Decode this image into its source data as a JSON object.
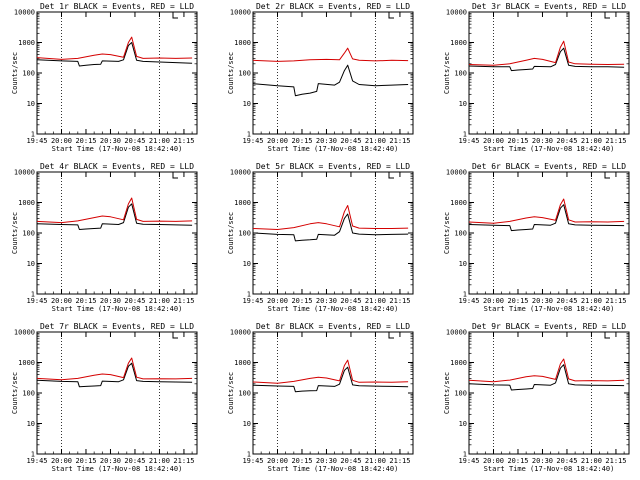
{
  "chart_data": [
    {
      "type": "line",
      "title": "Det 1r BLACK = Events, RED = LLD",
      "xlabel": "Start Time (17-Nov-08 18:42:40)",
      "ylabel": "Counts/sec",
      "yscale": "log",
      "ylim": [
        1,
        10000
      ],
      "x_ticks": [
        "19:45",
        "20:00",
        "20:15",
        "20:30",
        "20:45",
        "21:00",
        "21:15"
      ],
      "y_ticks": [
        "1",
        "10",
        "100",
        "1000",
        "10000"
      ],
      "dotted_vlines": [
        "20:00",
        "21:00"
      ],
      "series": [
        {
          "color": "#000000",
          "x": [
            "19:45",
            "20:00",
            "20:10",
            "20:11",
            "20:15",
            "20:20",
            "20:24",
            "20:25",
            "20:35",
            "20:38",
            "20:41",
            "20:43",
            "20:46",
            "20:50",
            "21:00",
            "21:10",
            "21:20"
          ],
          "y": [
            270,
            250,
            240,
            170,
            180,
            190,
            195,
            250,
            240,
            270,
            800,
            1000,
            260,
            240,
            230,
            220,
            210
          ]
        },
        {
          "color": "#d40000",
          "x": [
            "19:45",
            "20:00",
            "20:10",
            "20:20",
            "20:25",
            "20:30",
            "20:38",
            "20:41",
            "20:43",
            "20:46",
            "20:50",
            "21:00",
            "21:10",
            "21:20"
          ],
          "y": [
            320,
            280,
            300,
            380,
            420,
            400,
            330,
            1000,
            1500,
            350,
            300,
            310,
            300,
            310
          ]
        }
      ]
    },
    {
      "type": "line",
      "title": "Det 2r BLACK = Events, RED = LLD",
      "xlabel": "Start Time (17-Nov-08 18:42:40)",
      "ylabel": "Counts/sec",
      "yscale": "log",
      "ylim": [
        1,
        10000
      ],
      "x_ticks": [
        "19:45",
        "20:00",
        "20:15",
        "20:30",
        "20:45",
        "21:00",
        "21:15"
      ],
      "y_ticks": [
        "1",
        "10",
        "100",
        "1000",
        "10000"
      ],
      "dotted_vlines": [
        "20:00",
        "21:00"
      ],
      "series": [
        {
          "color": "#000000",
          "x": [
            "19:45",
            "20:00",
            "20:10",
            "20:11",
            "20:15",
            "20:20",
            "20:24",
            "20:25",
            "20:35",
            "20:38",
            "20:41",
            "20:43",
            "20:46",
            "20:50",
            "21:00",
            "21:10",
            "21:20"
          ],
          "y": [
            45,
            38,
            35,
            18,
            20,
            22,
            25,
            45,
            40,
            50,
            120,
            180,
            55,
            42,
            38,
            40,
            42
          ]
        },
        {
          "color": "#d40000",
          "x": [
            "19:45",
            "20:00",
            "20:10",
            "20:20",
            "20:30",
            "20:38",
            "20:41",
            "20:43",
            "20:46",
            "20:50",
            "21:00",
            "21:10",
            "21:20"
          ],
          "y": [
            260,
            240,
            250,
            270,
            280,
            270,
            450,
            650,
            290,
            260,
            250,
            260,
            255
          ]
        }
      ]
    },
    {
      "type": "line",
      "title": "Det 3r BLACK = Events, RED = LLD",
      "xlabel": "Start Time (17-Nov-08 18:42:40)",
      "ylabel": "Counts/sec",
      "yscale": "log",
      "ylim": [
        1,
        10000
      ],
      "x_ticks": [
        "19:45",
        "20:00",
        "20:15",
        "20:30",
        "20:45",
        "21:00",
        "21:15"
      ],
      "y_ticks": [
        "1",
        "10",
        "100",
        "1000",
        "10000"
      ],
      "dotted_vlines": [
        "20:00",
        "21:00"
      ],
      "series": [
        {
          "color": "#000000",
          "x": [
            "19:45",
            "20:00",
            "20:10",
            "20:11",
            "20:15",
            "20:20",
            "20:24",
            "20:25",
            "20:35",
            "20:38",
            "20:41",
            "20:43",
            "20:46",
            "20:50",
            "21:00",
            "21:10",
            "21:20"
          ],
          "y": [
            170,
            160,
            160,
            120,
            125,
            130,
            135,
            165,
            160,
            190,
            500,
            650,
            180,
            165,
            160,
            160,
            155
          ]
        },
        {
          "color": "#d40000",
          "x": [
            "19:45",
            "20:00",
            "20:10",
            "20:20",
            "20:25",
            "20:30",
            "20:38",
            "20:41",
            "20:43",
            "20:46",
            "20:50",
            "21:00",
            "21:10",
            "21:20"
          ],
          "y": [
            190,
            180,
            200,
            260,
            300,
            280,
            220,
            700,
            1100,
            230,
            200,
            195,
            190,
            195
          ]
        }
      ]
    },
    {
      "type": "line",
      "title": "Det 4r BLACK = Events, RED = LLD",
      "xlabel": "Start Time (17-Nov-08 18:42:40)",
      "ylabel": "Counts/sec",
      "yscale": "log",
      "ylim": [
        1,
        10000
      ],
      "x_ticks": [
        "19:45",
        "20:00",
        "20:15",
        "20:30",
        "20:45",
        "21:00",
        "21:15"
      ],
      "y_ticks": [
        "1",
        "10",
        "100",
        "1000",
        "10000"
      ],
      "dotted_vlines": [
        "20:00",
        "21:00"
      ],
      "series": [
        {
          "color": "#000000",
          "x": [
            "19:45",
            "20:00",
            "20:10",
            "20:11",
            "20:15",
            "20:20",
            "20:24",
            "20:25",
            "20:35",
            "20:38",
            "20:41",
            "20:43",
            "20:46",
            "20:50",
            "21:00",
            "21:10",
            "21:20"
          ],
          "y": [
            200,
            190,
            185,
            130,
            135,
            140,
            145,
            200,
            190,
            220,
            700,
            900,
            210,
            195,
            190,
            185,
            180
          ]
        },
        {
          "color": "#d40000",
          "x": [
            "19:45",
            "20:00",
            "20:10",
            "20:20",
            "20:25",
            "20:30",
            "20:38",
            "20:41",
            "20:43",
            "20:46",
            "20:50",
            "21:00",
            "21:10",
            "21:20"
          ],
          "y": [
            240,
            220,
            250,
            320,
            360,
            340,
            270,
            900,
            1400,
            280,
            240,
            245,
            240,
            250
          ]
        }
      ]
    },
    {
      "type": "line",
      "title": "Det 5r BLACK = Events, RED = LLD",
      "xlabel": "Start Time (17-Nov-08 18:42:40)",
      "ylabel": "Counts/sec",
      "yscale": "log",
      "ylim": [
        1,
        10000
      ],
      "x_ticks": [
        "19:45",
        "20:00",
        "20:15",
        "20:30",
        "20:45",
        "21:00",
        "21:15"
      ],
      "y_ticks": [
        "1",
        "10",
        "100",
        "1000",
        "10000"
      ],
      "dotted_vlines": [
        "20:00",
        "21:00"
      ],
      "series": [
        {
          "color": "#000000",
          "x": [
            "19:45",
            "20:00",
            "20:10",
            "20:11",
            "20:15",
            "20:20",
            "20:24",
            "20:25",
            "20:35",
            "20:38",
            "20:41",
            "20:43",
            "20:46",
            "20:50",
            "21:00",
            "21:10",
            "21:20"
          ],
          "y": [
            100,
            90,
            88,
            55,
            58,
            60,
            62,
            90,
            85,
            110,
            300,
            420,
            100,
            92,
            88,
            90,
            92
          ]
        },
        {
          "color": "#d40000",
          "x": [
            "19:45",
            "20:00",
            "20:10",
            "20:20",
            "20:25",
            "20:30",
            "20:38",
            "20:41",
            "20:43",
            "20:46",
            "20:50",
            "21:00",
            "21:10",
            "21:20"
          ],
          "y": [
            140,
            130,
            150,
            200,
            220,
            200,
            160,
            500,
            800,
            170,
            145,
            140,
            140,
            145
          ]
        }
      ]
    },
    {
      "type": "line",
      "title": "Det 6r BLACK = Events, RED = LLD",
      "xlabel": "Start Time (17-Nov-08 18:42:40)",
      "ylabel": "Counts/sec",
      "yscale": "log",
      "ylim": [
        1,
        10000
      ],
      "x_ticks": [
        "19:45",
        "20:00",
        "20:15",
        "20:30",
        "20:45",
        "21:00",
        "21:15"
      ],
      "y_ticks": [
        "1",
        "10",
        "100",
        "1000",
        "10000"
      ],
      "dotted_vlines": [
        "20:00",
        "21:00"
      ],
      "series": [
        {
          "color": "#000000",
          "x": [
            "19:45",
            "20:00",
            "20:10",
            "20:11",
            "20:15",
            "20:20",
            "20:24",
            "20:25",
            "20:35",
            "20:38",
            "20:41",
            "20:43",
            "20:46",
            "20:50",
            "21:00",
            "21:10",
            "21:20"
          ],
          "y": [
            190,
            180,
            175,
            120,
            125,
            130,
            135,
            190,
            180,
            210,
            650,
            850,
            200,
            185,
            180,
            178,
            175
          ]
        },
        {
          "color": "#d40000",
          "x": [
            "19:45",
            "20:00",
            "20:10",
            "20:20",
            "20:25",
            "20:30",
            "20:38",
            "20:41",
            "20:43",
            "20:46",
            "20:50",
            "21:00",
            "21:10",
            "21:20"
          ],
          "y": [
            230,
            210,
            240,
            310,
            340,
            320,
            260,
            850,
            1300,
            270,
            230,
            235,
            230,
            240
          ]
        }
      ]
    },
    {
      "type": "line",
      "title": "Det 7r BLACK = Events, RED = LLD",
      "xlabel": "Start Time (17-Nov-08 18:42:40)",
      "ylabel": "Counts/sec",
      "yscale": "log",
      "ylim": [
        1,
        10000
      ],
      "x_ticks": [
        "19:45",
        "20:00",
        "20:15",
        "20:30",
        "20:45",
        "21:00",
        "21:15"
      ],
      "y_ticks": [
        "1",
        "10",
        "100",
        "1000",
        "10000"
      ],
      "dotted_vlines": [
        "20:00",
        "21:00"
      ],
      "series": [
        {
          "color": "#000000",
          "x": [
            "19:45",
            "20:00",
            "20:10",
            "20:11",
            "20:15",
            "20:20",
            "20:24",
            "20:25",
            "20:35",
            "20:38",
            "20:41",
            "20:43",
            "20:46",
            "20:50",
            "21:00",
            "21:10",
            "21:20"
          ],
          "y": [
            260,
            240,
            235,
            160,
            165,
            170,
            175,
            245,
            235,
            270,
            750,
            950,
            255,
            240,
            235,
            230,
            225
          ]
        },
        {
          "color": "#d40000",
          "x": [
            "19:45",
            "20:00",
            "20:10",
            "20:20",
            "20:25",
            "20:30",
            "20:38",
            "20:41",
            "20:43",
            "20:46",
            "20:50",
            "21:00",
            "21:10",
            "21:20"
          ],
          "y": [
            300,
            270,
            300,
            380,
            420,
            400,
            320,
            950,
            1400,
            330,
            290,
            295,
            290,
            300
          ]
        }
      ]
    },
    {
      "type": "line",
      "title": "Det 8r BLACK = Events, RED = LLD",
      "xlabel": "Start Time (17-Nov-08 18:42:40)",
      "ylabel": "Counts/sec",
      "yscale": "log",
      "ylim": [
        1,
        10000
      ],
      "x_ticks": [
        "19:45",
        "20:00",
        "20:15",
        "20:30",
        "20:45",
        "21:00",
        "21:15"
      ],
      "y_ticks": [
        "1",
        "10",
        "100",
        "1000",
        "10000"
      ],
      "dotted_vlines": [
        "20:00",
        "21:00"
      ],
      "series": [
        {
          "color": "#000000",
          "x": [
            "19:45",
            "20:00",
            "20:10",
            "20:11",
            "20:15",
            "20:20",
            "20:24",
            "20:25",
            "20:35",
            "20:38",
            "20:41",
            "20:43",
            "20:46",
            "20:50",
            "21:00",
            "21:10",
            "21:20"
          ],
          "y": [
            180,
            170,
            165,
            110,
            115,
            118,
            120,
            175,
            165,
            195,
            550,
            700,
            185,
            172,
            168,
            165,
            160
          ]
        },
        {
          "color": "#d40000",
          "x": [
            "19:45",
            "20:00",
            "20:10",
            "20:20",
            "20:25",
            "20:30",
            "20:38",
            "20:41",
            "20:43",
            "20:46",
            "20:50",
            "21:00",
            "21:10",
            "21:20"
          ],
          "y": [
            230,
            210,
            240,
            300,
            330,
            310,
            250,
            800,
            1200,
            260,
            225,
            230,
            225,
            235
          ]
        }
      ]
    },
    {
      "type": "line",
      "title": "Det 9r BLACK = Events, RED = LLD",
      "xlabel": "Start Time (17-Nov-08 18:42:40)",
      "ylabel": "Counts/sec",
      "yscale": "log",
      "ylim": [
        1,
        10000
      ],
      "x_ticks": [
        "19:45",
        "20:00",
        "20:15",
        "20:30",
        "20:45",
        "21:00",
        "21:15"
      ],
      "y_ticks": [
        "1",
        "10",
        "100",
        "1000",
        "10000"
      ],
      "dotted_vlines": [
        "20:00",
        "21:00"
      ],
      "series": [
        {
          "color": "#000000",
          "x": [
            "19:45",
            "20:00",
            "20:10",
            "20:11",
            "20:15",
            "20:20",
            "20:24",
            "20:25",
            "20:35",
            "20:38",
            "20:41",
            "20:43",
            "20:46",
            "20:50",
            "21:00",
            "21:10",
            "21:20"
          ],
          "y": [
            200,
            185,
            180,
            125,
            130,
            135,
            140,
            190,
            180,
            215,
            650,
            850,
            200,
            185,
            180,
            178,
            175
          ]
        },
        {
          "color": "#d40000",
          "x": [
            "19:45",
            "20:00",
            "20:10",
            "20:20",
            "20:25",
            "20:30",
            "20:38",
            "20:41",
            "20:43",
            "20:46",
            "20:50",
            "21:00",
            "21:10",
            "21:20"
          ],
          "y": [
            260,
            235,
            265,
            340,
            370,
            350,
            280,
            900,
            1300,
            290,
            250,
            255,
            250,
            260
          ]
        }
      ]
    }
  ]
}
